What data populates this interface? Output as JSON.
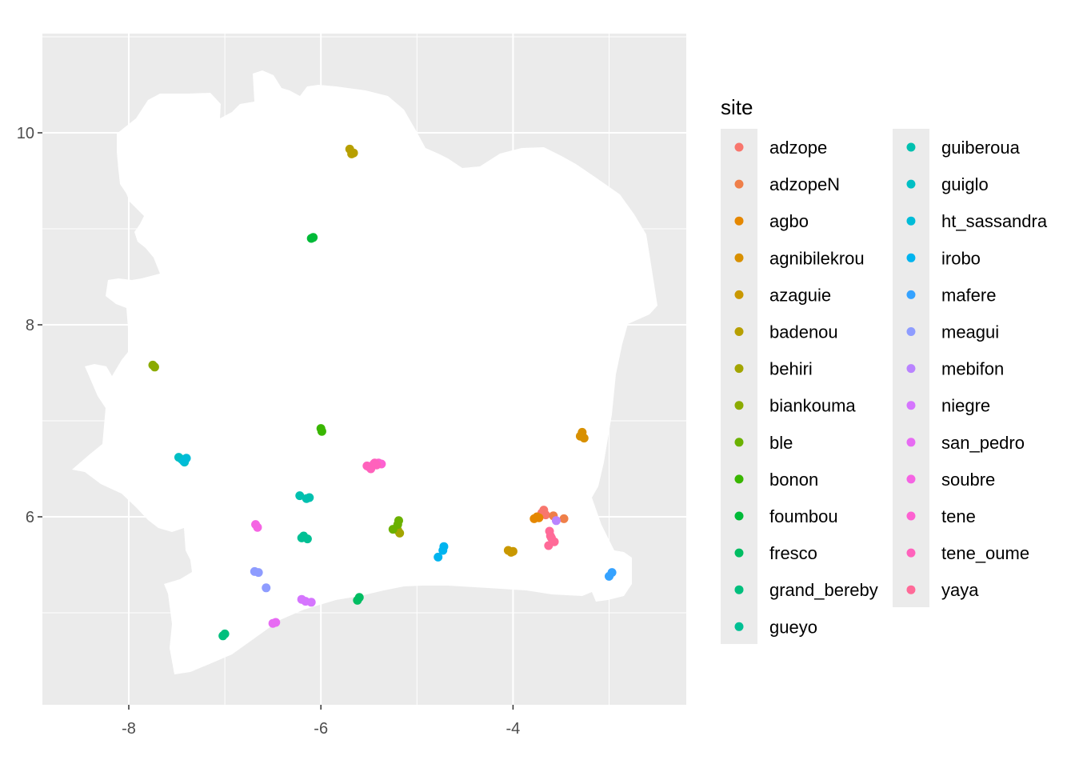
{
  "chart_data": {
    "type": "scatter",
    "title": "",
    "xlabel": "",
    "ylabel": "",
    "xlim": [
      -8.9,
      -2.2
    ],
    "ylim": [
      4.1,
      11.05
    ],
    "x_ticks": [
      -8,
      -6,
      -4
    ],
    "y_ticks": [
      6,
      8,
      10
    ],
    "x_tick_labels": [
      "-8",
      "-6",
      "-4"
    ],
    "y_tick_labels": [
      "6",
      "8",
      "10"
    ],
    "grid": true,
    "panel_background": "#ebebeb",
    "land_fill": "#ffffff",
    "legend": {
      "title": "site",
      "position": "right",
      "columns": 2,
      "entries": [
        {
          "name": "adzope",
          "color": "#F8766D"
        },
        {
          "name": "adzopeN",
          "color": "#EF7F49"
        },
        {
          "name": "agbo",
          "color": "#E58700"
        },
        {
          "name": "agnibilekrou",
          "color": "#D89000"
        },
        {
          "name": "azaguie",
          "color": "#C99800"
        },
        {
          "name": "badenou",
          "color": "#B79F00"
        },
        {
          "name": "behiri",
          "color": "#A3A500"
        },
        {
          "name": "biankouma",
          "color": "#8BAB00"
        },
        {
          "name": "ble",
          "color": "#6BB100"
        },
        {
          "name": "bonon",
          "color": "#39B600"
        },
        {
          "name": "foumbou",
          "color": "#00BA38"
        },
        {
          "name": "fresco",
          "color": "#00BD62"
        },
        {
          "name": "grand_bereby",
          "color": "#00BF7D"
        },
        {
          "name": "gueyo",
          "color": "#00C094"
        },
        {
          "name": "guiberoua",
          "color": "#00C0AF"
        },
        {
          "name": "guiglo",
          "color": "#00BFC4"
        },
        {
          "name": "ht_sassandra",
          "color": "#00BCD8"
        },
        {
          "name": "irobo",
          "color": "#00B4EF"
        },
        {
          "name": "mafere",
          "color": "#35A2FF"
        },
        {
          "name": "meagui",
          "color": "#8E9CFF"
        },
        {
          "name": "mebifon",
          "color": "#B983FF"
        },
        {
          "name": "niegre",
          "color": "#D575FE"
        },
        {
          "name": "san_pedro",
          "color": "#E76BF3"
        },
        {
          "name": "soubre",
          "color": "#F564E3"
        },
        {
          "name": "tene",
          "color": "#FD61D1"
        },
        {
          "name": "tene_oume",
          "color": "#FF62BC"
        },
        {
          "name": "yaya",
          "color": "#FF6A98"
        }
      ]
    },
    "series": [
      {
        "name": "adzope",
        "color": "#F8766D",
        "points": [
          [
            -3.68,
            6.07
          ],
          [
            -3.7,
            6.04
          ],
          [
            -3.66,
            6.02
          ]
        ]
      },
      {
        "name": "adzopeN",
        "color": "#EF7F49",
        "points": [
          [
            -3.47,
            5.98
          ],
          [
            -3.58,
            6.01
          ]
        ]
      },
      {
        "name": "agbo",
        "color": "#E58700",
        "points": [
          [
            -3.78,
            5.98
          ],
          [
            -3.73,
            5.99
          ],
          [
            -3.75,
            6.0
          ]
        ]
      },
      {
        "name": "agnibilekrou",
        "color": "#D89000",
        "points": [
          [
            -3.3,
            6.84
          ],
          [
            -3.26,
            6.82
          ],
          [
            -3.28,
            6.88
          ]
        ]
      },
      {
        "name": "azaguie",
        "color": "#C99800",
        "points": [
          [
            -4.02,
            5.63
          ],
          [
            -4.05,
            5.65
          ],
          [
            -4.0,
            5.64
          ]
        ]
      },
      {
        "name": "badenou",
        "color": "#B79F00",
        "points": [
          [
            -5.68,
            9.78
          ],
          [
            -5.7,
            9.83
          ],
          [
            -5.66,
            9.79
          ]
        ]
      },
      {
        "name": "behiri",
        "color": "#A3A500",
        "points": [
          [
            -5.2,
            5.86
          ],
          [
            -5.18,
            5.83
          ]
        ]
      },
      {
        "name": "biankouma",
        "color": "#8BAB00",
        "points": [
          [
            -7.75,
            7.58
          ],
          [
            -7.73,
            7.56
          ]
        ]
      },
      {
        "name": "ble",
        "color": "#6BB100",
        "points": [
          [
            -5.25,
            5.87
          ],
          [
            -5.2,
            5.92
          ],
          [
            -5.19,
            5.96
          ]
        ]
      },
      {
        "name": "bonon",
        "color": "#39B600",
        "points": [
          [
            -6.0,
            6.92
          ],
          [
            -5.99,
            6.89
          ]
        ]
      },
      {
        "name": "foumbou",
        "color": "#00BA38",
        "points": [
          [
            -6.1,
            8.9
          ],
          [
            -6.08,
            8.91
          ]
        ]
      },
      {
        "name": "fresco",
        "color": "#00BD62",
        "points": [
          [
            -5.6,
            5.16
          ],
          [
            -5.62,
            5.13
          ]
        ]
      },
      {
        "name": "grand_bereby",
        "color": "#00BF7D",
        "points": [
          [
            -7.0,
            4.78
          ],
          [
            -7.02,
            4.76
          ]
        ]
      },
      {
        "name": "gueyo",
        "color": "#00C094",
        "points": [
          [
            -6.18,
            5.8
          ],
          [
            -6.14,
            5.77
          ],
          [
            -6.2,
            5.78
          ]
        ]
      },
      {
        "name": "guiberoua",
        "color": "#00C0AF",
        "points": [
          [
            -6.22,
            6.22
          ],
          [
            -6.15,
            6.19
          ],
          [
            -6.12,
            6.2
          ]
        ]
      },
      {
        "name": "guiglo",
        "color": "#00BFC4",
        "points": [
          [
            -7.45,
            6.6
          ],
          [
            -7.42,
            6.57
          ],
          [
            -7.48,
            6.62
          ]
        ]
      },
      {
        "name": "ht_sassandra",
        "color": "#00BCD8",
        "points": [
          [
            -7.43,
            6.58
          ],
          [
            -7.4,
            6.61
          ]
        ]
      },
      {
        "name": "irobo",
        "color": "#00B4EF",
        "points": [
          [
            -4.78,
            5.58
          ],
          [
            -4.73,
            5.65
          ],
          [
            -4.72,
            5.69
          ]
        ]
      },
      {
        "name": "mafere",
        "color": "#35A2FF",
        "points": [
          [
            -3.0,
            5.38
          ],
          [
            -2.97,
            5.42
          ]
        ]
      },
      {
        "name": "meagui",
        "color": "#8E9CFF",
        "points": [
          [
            -6.65,
            5.42
          ],
          [
            -6.69,
            5.43
          ],
          [
            -6.57,
            5.26
          ]
        ]
      },
      {
        "name": "mebifon",
        "color": "#B983FF",
        "points": [
          [
            -3.55,
            5.96
          ]
        ]
      },
      {
        "name": "niegre",
        "color": "#D575FE",
        "points": [
          [
            -6.16,
            5.12
          ],
          [
            -6.1,
            5.11
          ],
          [
            -6.2,
            5.14
          ]
        ]
      },
      {
        "name": "san_pedro",
        "color": "#E76BF3",
        "points": [
          [
            -6.5,
            4.89
          ],
          [
            -6.47,
            4.9
          ]
        ]
      },
      {
        "name": "soubre",
        "color": "#F564E3",
        "points": [
          [
            -6.68,
            5.92
          ],
          [
            -6.66,
            5.89
          ]
        ]
      },
      {
        "name": "tene",
        "color": "#FD61D1",
        "points": [
          [
            -5.5,
            6.52
          ],
          [
            -5.45,
            6.55
          ],
          [
            -5.4,
            6.56
          ],
          [
            -5.37,
            6.55
          ]
        ]
      },
      {
        "name": "tene_oume",
        "color": "#FF62BC",
        "points": [
          [
            -5.52,
            6.53
          ],
          [
            -5.42,
            6.54
          ],
          [
            -5.48,
            6.5
          ],
          [
            -5.44,
            6.56
          ]
        ]
      },
      {
        "name": "yaya",
        "color": "#FF6A98",
        "points": [
          [
            -3.62,
            5.85
          ],
          [
            -3.6,
            5.78
          ],
          [
            -3.63,
            5.7
          ],
          [
            -3.57,
            5.74
          ],
          [
            -3.61,
            5.8
          ]
        ]
      }
    ]
  }
}
